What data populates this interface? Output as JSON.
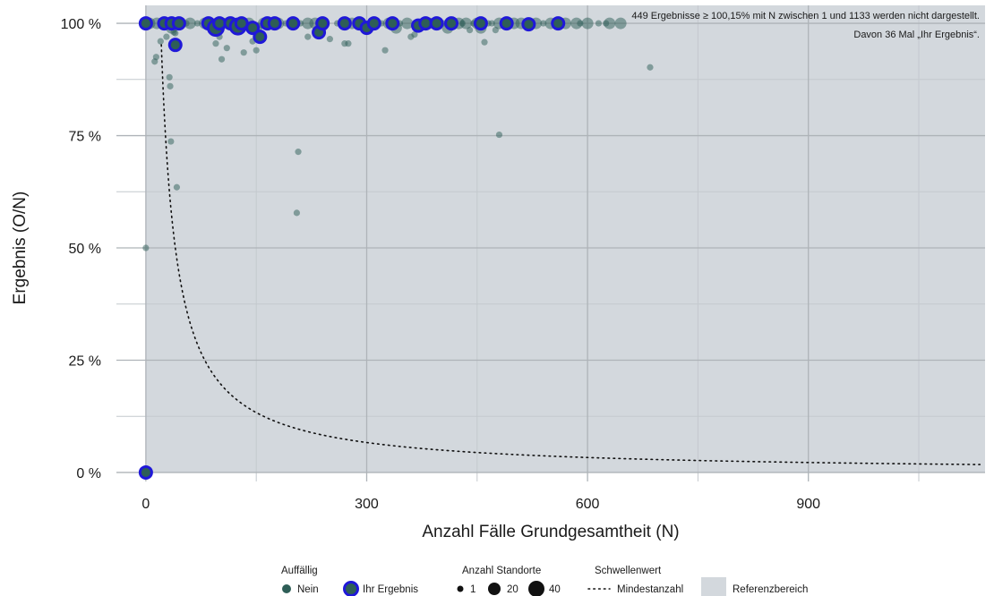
{
  "chart_data": {
    "type": "scatter",
    "xlabel": "Anzahl Fälle Grundgesamtheit (N)",
    "ylabel": "Ergebnis (O/N)",
    "xlim": [
      -40,
      1140
    ],
    "ylim": [
      -0.02,
      1.04
    ],
    "x_ticks": [
      {
        "value": 0,
        "label": "0"
      },
      {
        "value": 300,
        "label": "300"
      },
      {
        "value": 600,
        "label": "600"
      },
      {
        "value": 900,
        "label": "900"
      }
    ],
    "x_minor_ticks": [
      150,
      450,
      750,
      1050
    ],
    "y_ticks": [
      {
        "value": 0,
        "label": "0 %"
      },
      {
        "value": 0.25,
        "label": "25 %"
      },
      {
        "value": 0.5,
        "label": "50 %"
      },
      {
        "value": 0.75,
        "label": "75 %"
      },
      {
        "value": 1.0,
        "label": "100 %"
      }
    ],
    "y_minor_ticks": [
      0.125,
      0.375,
      0.625,
      0.875
    ],
    "grid": true,
    "reference_range": {
      "x": [
        0,
        1140
      ],
      "y": [
        0,
        1.04
      ],
      "color": "#d3d8dd"
    },
    "annotations": [
      "449 Ergebnisse ≥ 100,15% mit N zwischen 1 und 1133 werden nicht dargestellt.",
      "Davon 36 Mal „Ihr Ergebnis“."
    ],
    "threshold_curve": {
      "name": "Mindestanzahl",
      "formula": "y = 20 / x",
      "x_range": [
        21,
        1133
      ]
    },
    "series": [
      {
        "name": "Nein",
        "color": "#2e5e57",
        "points": [
          [
            0,
            0.5
          ],
          [
            12,
            0.915
          ],
          [
            14,
            0.925
          ],
          [
            20,
            0.96
          ],
          [
            28,
            0.97
          ],
          [
            32,
            0.88
          ],
          [
            33,
            0.86
          ],
          [
            34,
            0.737
          ],
          [
            38,
            0.98
          ],
          [
            40,
            0.978
          ],
          [
            42,
            0.635
          ],
          [
            95,
            0.955
          ],
          [
            100,
            0.97
          ],
          [
            103,
            0.92
          ],
          [
            110,
            0.945
          ],
          [
            133,
            0.935
          ],
          [
            145,
            0.96
          ],
          [
            150,
            0.94
          ],
          [
            205,
            0.578
          ],
          [
            207,
            0.714
          ],
          [
            220,
            0.97
          ],
          [
            250,
            0.965
          ],
          [
            270,
            0.955
          ],
          [
            275,
            0.955
          ],
          [
            325,
            0.94
          ],
          [
            360,
            0.97
          ],
          [
            365,
            0.975
          ],
          [
            440,
            0.985
          ],
          [
            460,
            0.958
          ],
          [
            475,
            0.985
          ],
          [
            480,
            0.752
          ],
          [
            685,
            0.902
          ],
          [
            5,
            1.0
          ],
          [
            15,
            1.0
          ],
          [
            30,
            1.0
          ],
          [
            45,
            1.0
          ],
          [
            55,
            1.0
          ],
          [
            60,
            1.0
          ],
          [
            70,
            1.0
          ],
          [
            80,
            1.0
          ],
          [
            110,
            1.0
          ],
          [
            120,
            1.0
          ],
          [
            140,
            1.0
          ],
          [
            160,
            1.0
          ],
          [
            180,
            1.0
          ],
          [
            190,
            1.0
          ],
          [
            200,
            1.0
          ],
          [
            210,
            1.0
          ],
          [
            220,
            1.0
          ],
          [
            230,
            1.0
          ],
          [
            245,
            1.0
          ],
          [
            260,
            1.0
          ],
          [
            280,
            1.0
          ],
          [
            290,
            1.0
          ],
          [
            310,
            1.0
          ],
          [
            320,
            1.0
          ],
          [
            330,
            1.0
          ],
          [
            345,
            1.0
          ],
          [
            355,
            1.0
          ],
          [
            375,
            1.0
          ],
          [
            385,
            1.0
          ],
          [
            405,
            1.0
          ],
          [
            415,
            1.0
          ],
          [
            425,
            1.0
          ],
          [
            430,
            1.0
          ],
          [
            435,
            1.0
          ],
          [
            445,
            1.0
          ],
          [
            450,
            1.0
          ],
          [
            465,
            1.0
          ],
          [
            470,
            1.0
          ],
          [
            480,
            1.0
          ],
          [
            500,
            1.0
          ],
          [
            510,
            1.0
          ],
          [
            530,
            1.0
          ],
          [
            540,
            1.0
          ],
          [
            550,
            1.0
          ],
          [
            570,
            1.0
          ],
          [
            585,
            1.0
          ],
          [
            590,
            1.0
          ],
          [
            600,
            1.0
          ],
          [
            615,
            1.0
          ],
          [
            625,
            1.0
          ],
          [
            630,
            1.0
          ],
          [
            645,
            1.0
          ],
          [
            35,
            0.99
          ],
          [
            125,
            0.99
          ],
          [
            150,
            0.99
          ],
          [
            240,
            0.995
          ],
          [
            300,
            0.992
          ],
          [
            340,
            0.99
          ],
          [
            410,
            0.99
          ],
          [
            455,
            0.99
          ],
          [
            520,
            0.995
          ],
          [
            560,
            0.998
          ]
        ],
        "sizes": [
          1,
          1,
          1,
          1,
          1,
          1,
          1,
          1,
          1,
          1,
          1,
          1,
          1,
          1,
          1,
          1,
          1,
          1,
          1,
          1,
          1,
          1,
          1,
          1,
          1,
          1,
          1,
          1,
          1,
          1,
          1,
          1,
          20,
          20,
          20,
          20,
          1,
          20,
          1,
          20,
          20,
          1,
          20,
          20,
          20,
          1,
          20,
          1,
          20,
          20,
          1,
          1,
          20,
          1,
          20,
          1,
          20,
          1,
          20,
          1,
          20,
          1,
          20,
          20,
          1,
          20,
          1,
          20,
          1,
          1,
          20,
          20,
          20,
          20,
          1,
          20,
          20,
          20,
          1,
          20,
          1,
          1,
          20,
          20,
          20,
          20,
          20,
          20,
          20,
          20,
          20,
          20
        ]
      },
      {
        "name": "Ihr Ergebnis",
        "color": "#2e5e57",
        "outline": "#1f18d8",
        "points": [
          [
            0,
            0.0
          ],
          [
            0,
            1.0
          ],
          [
            25,
            1.0
          ],
          [
            35,
            1.0
          ],
          [
            40,
            0.952
          ],
          [
            45,
            1.0
          ],
          [
            85,
            1.0
          ],
          [
            95,
            0.99
          ],
          [
            100,
            1.0
          ],
          [
            115,
            1.0
          ],
          [
            125,
            0.993
          ],
          [
            130,
            1.0
          ],
          [
            145,
            0.99
          ],
          [
            155,
            0.97
          ],
          [
            165,
            1.0
          ],
          [
            175,
            1.0
          ],
          [
            200,
            1.0
          ],
          [
            235,
            0.98
          ],
          [
            240,
            1.0
          ],
          [
            270,
            1.0
          ],
          [
            290,
            1.0
          ],
          [
            300,
            0.99
          ],
          [
            310,
            1.0
          ],
          [
            335,
            1.0
          ],
          [
            370,
            0.995
          ],
          [
            380,
            1.0
          ],
          [
            395,
            1.0
          ],
          [
            415,
            1.0
          ],
          [
            455,
            1.0
          ],
          [
            490,
            1.0
          ],
          [
            520,
            0.998
          ],
          [
            560,
            1.0
          ]
        ],
        "sizes": [
          20,
          20,
          20,
          20,
          20,
          20,
          20,
          40,
          20,
          20,
          40,
          20,
          20,
          20,
          20,
          20,
          20,
          20,
          20,
          20,
          20,
          20,
          20,
          20,
          20,
          20,
          20,
          20,
          20,
          20,
          20,
          20
        ]
      }
    ]
  },
  "legend": {
    "auffaellig_title": "Auffällig",
    "nein_label": "Nein",
    "ihr_label": "Ihr Ergebnis",
    "anzahl_title": "Anzahl Standorte",
    "size_1": "1",
    "size_20": "20",
    "size_40": "40",
    "schwellen_title": "Schwellenwert",
    "mindest_label": "Mindestanzahl",
    "referenz_label": "Referenzbereich"
  }
}
